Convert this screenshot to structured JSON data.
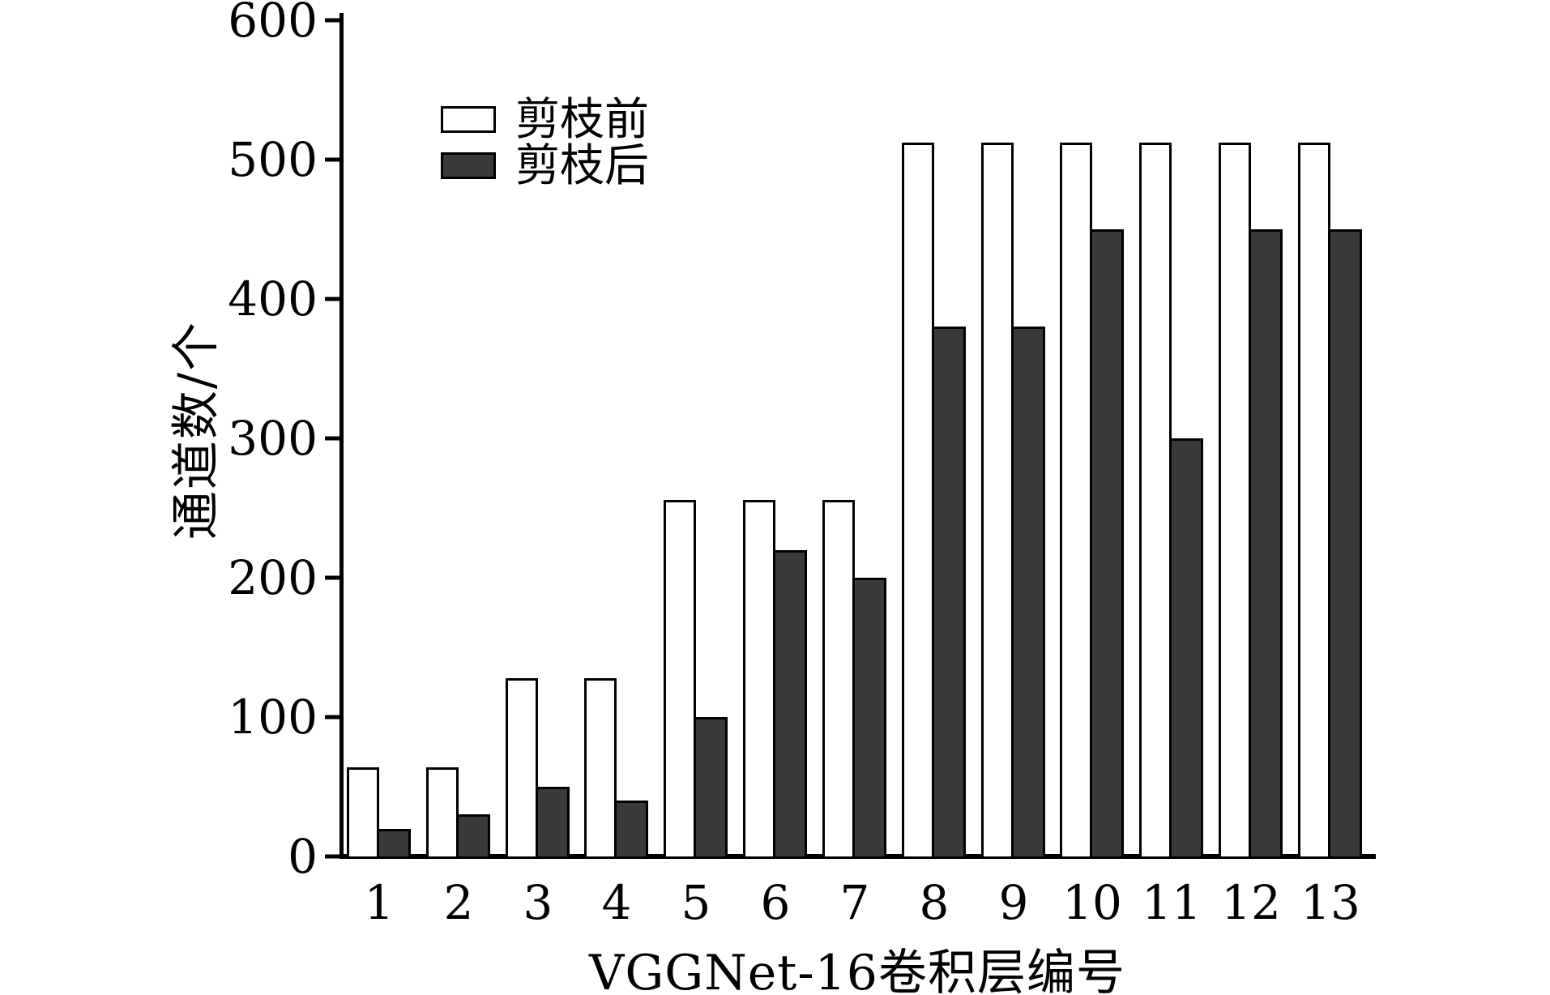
{
  "chart_data": {
    "type": "bar",
    "title": "",
    "xlabel": "VGGNet-16卷积层编号",
    "ylabel": "通道数/个",
    "categories": [
      "1",
      "2",
      "3",
      "4",
      "5",
      "6",
      "7",
      "8",
      "9",
      "10",
      "11",
      "12",
      "13"
    ],
    "series": [
      {
        "name": "剪枝前",
        "fill": "#ffffff",
        "values": [
          64,
          64,
          128,
          128,
          256,
          256,
          256,
          512,
          512,
          512,
          512,
          512,
          512
        ]
      },
      {
        "name": "剪枝后",
        "fill": "#3a3a3a",
        "values": [
          20,
          30,
          50,
          40,
          100,
          220,
          200,
          380,
          380,
          450,
          300,
          450,
          450
        ]
      }
    ],
    "ylim": [
      0,
      600
    ],
    "yticks": [
      0,
      100,
      200,
      300,
      400,
      500,
      600
    ],
    "grid": false,
    "legend_position": "upper-left-inside",
    "colors": {
      "bar_outline": "#000000",
      "axis": "#000000",
      "text": "#000000",
      "background": "#ffffff"
    }
  }
}
